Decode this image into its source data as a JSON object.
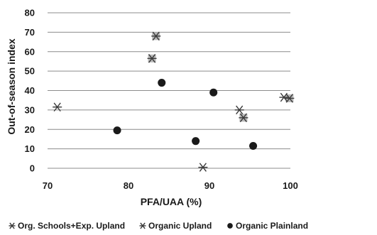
{
  "chart_data": {
    "type": "scatter",
    "xlabel": "PFA/UAA (%)",
    "ylabel": "Out-of-season index",
    "xlim": [
      70,
      100
    ],
    "ylim": [
      0,
      80
    ],
    "x_ticks": [
      "70",
      "80",
      "90",
      "100"
    ],
    "y_ticks": [
      "0",
      "10",
      "20",
      "30",
      "40",
      "50",
      "60",
      "70",
      "80"
    ],
    "grid": "horizontal",
    "legend_position": "bottom",
    "series": [
      {
        "name": "Org. Schools+Exp. Upland",
        "marker": "asterisk-boxed",
        "color": "#3a3a3a",
        "points": [
          {
            "x": 83.4,
            "y": 68
          },
          {
            "x": 82.9,
            "y": 56.5
          },
          {
            "x": 94.2,
            "y": 26
          },
          {
            "x": 99.9,
            "y": 36
          }
        ]
      },
      {
        "name": "Organic Upland",
        "marker": "asterisk",
        "color": "#3a3a3a",
        "points": [
          {
            "x": 71.2,
            "y": 31.5
          },
          {
            "x": 89.2,
            "y": 0.5
          },
          {
            "x": 93.7,
            "y": 30
          },
          {
            "x": 99.2,
            "y": 36.5
          }
        ]
      },
      {
        "name": "Organic Plainland",
        "marker": "circle",
        "color": "#1a1a1a",
        "points": [
          {
            "x": 78.6,
            "y": 19.5
          },
          {
            "x": 84.1,
            "y": 44
          },
          {
            "x": 88.3,
            "y": 14
          },
          {
            "x": 90.5,
            "y": 39
          },
          {
            "x": 95.4,
            "y": 11.5
          }
        ]
      }
    ]
  }
}
